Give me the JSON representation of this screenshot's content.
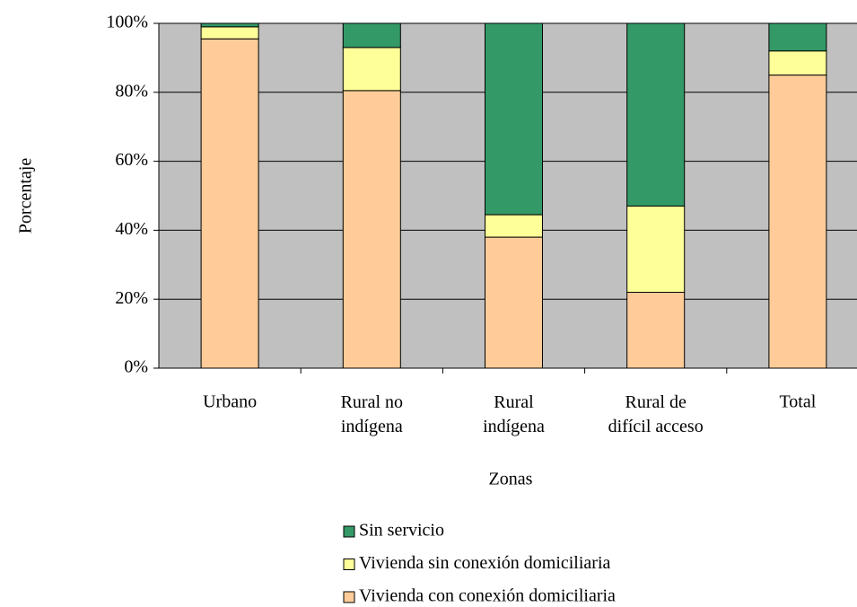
{
  "chart_data": {
    "type": "stacked_bar",
    "categories": [
      "Urbano",
      "Rural no\nindígena",
      "Rural\nindígena",
      "Rural de\ndifícil acceso",
      "Total"
    ],
    "series": [
      {
        "name": "Vivienda con conexión domiciliaria",
        "color": "#ffcc99",
        "values": [
          95.5,
          80.5,
          38,
          22,
          85
        ]
      },
      {
        "name": "Vivienda sin conexión domiciliaria",
        "color": "#ffff99",
        "values": [
          3.5,
          12.5,
          6.5,
          25,
          7
        ]
      },
      {
        "name": "Sin servicio",
        "color": "#339966",
        "values": [
          1,
          7,
          55.5,
          53,
          8
        ]
      }
    ],
    "ylim": [
      0,
      100
    ],
    "yticks": [
      {
        "value": 0,
        "label": "0%"
      },
      {
        "value": 20,
        "label": "20%"
      },
      {
        "value": 40,
        "label": "40%"
      },
      {
        "value": 60,
        "label": "60%"
      },
      {
        "value": 80,
        "label": "80%"
      },
      {
        "value": 100,
        "label": "100%"
      }
    ],
    "x_label": "Zonas",
    "y_label": "Porcentaje",
    "grid": true,
    "plot_background": "#c0c0c0",
    "legend": "bottom"
  }
}
